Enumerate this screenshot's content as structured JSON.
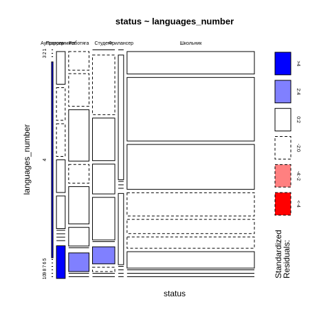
{
  "chart_data": {
    "type": "mosaic",
    "title": "status ~ languages_number",
    "x_label": "status",
    "y_label": "languages_number",
    "categories": [
      "Аутсорсер",
      "Программист",
      "Работяга",
      "Студент",
      "Фрилансер",
      "Школьник"
    ],
    "levels": [
      "1",
      "2",
      "3",
      "4",
      "5",
      "6",
      "7",
      "8",
      "9",
      "10"
    ],
    "counts": [
      [
        0,
        0,
        0,
        3,
        0,
        0,
        0,
        0,
        0,
        0
      ],
      [
        3,
        3,
        3,
        3,
        3,
        0,
        0,
        0,
        0,
        3
      ],
      [
        4,
        7,
        11,
        4,
        8,
        4,
        0,
        4,
        0,
        0
      ],
      [
        0,
        14,
        10,
        7,
        10,
        0,
        4,
        1,
        0,
        0
      ],
      [
        0,
        7,
        0,
        0,
        0,
        4,
        0,
        0,
        0,
        0
      ],
      [
        30,
        85,
        60,
        31,
        19,
        15,
        22,
        0,
        0,
        0
      ]
    ],
    "residual_class": [
      [
        3,
        3,
        3,
        0,
        3,
        3,
        3,
        3,
        3,
        3
      ],
      [
        2,
        3,
        3,
        2,
        2,
        3,
        3,
        3,
        3,
        0
      ],
      [
        3,
        3,
        2,
        3,
        2,
        2,
        3,
        1,
        3,
        3
      ],
      [
        3,
        3,
        2,
        2,
        2,
        3,
        1,
        3,
        3,
        3
      ],
      [
        3,
        2,
        3,
        3,
        3,
        2,
        3,
        3,
        3,
        3
      ],
      [
        2,
        2,
        2,
        3,
        3,
        3,
        2,
        3,
        3,
        3
      ]
    ],
    "legend_title": [
      "Standardized",
      "Residuals:"
    ],
    "legend": [
      {
        "label": ">4",
        "color": "#0000ff",
        "dashed": false
      },
      {
        "label": "2:4",
        "color": "#8080ff",
        "dashed": false
      },
      {
        "label": "0:2",
        "color": "#ffffff",
        "dashed": false
      },
      {
        "label": "-2:0",
        "color": "#ffffff",
        "dashed": true
      },
      {
        "label": "-4:-2",
        "color": "#ff8080",
        "dashed": true
      },
      {
        "label": "<-4",
        "color": "#ff0000",
        "dashed": true
      }
    ]
  }
}
